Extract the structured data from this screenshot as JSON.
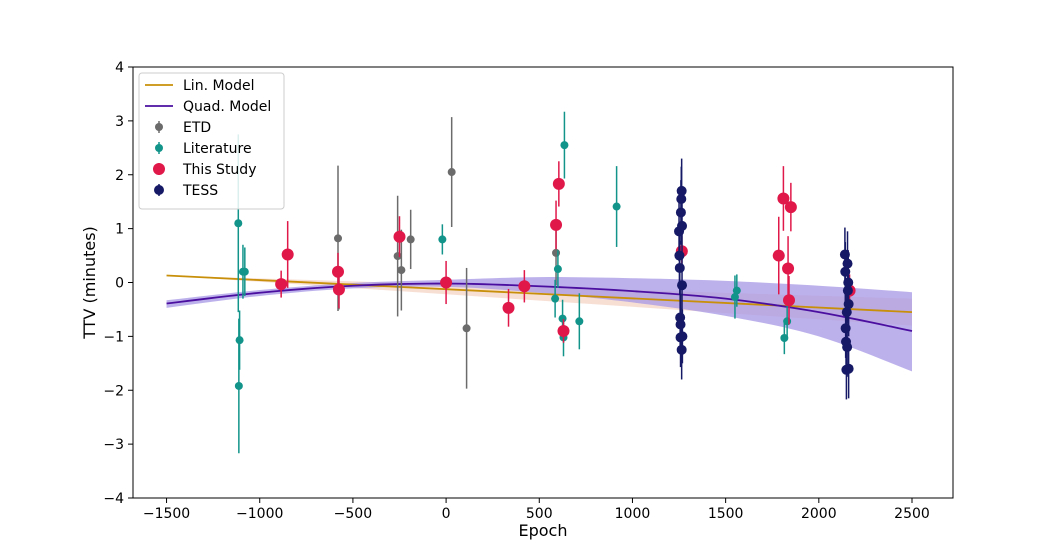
{
  "chart_data": {
    "type": "scatter",
    "xlabel": "Epoch",
    "ylabel": "TTV (minutes)",
    "xlim": [
      -1680,
      2720
    ],
    "ylim": [
      -4,
      4
    ],
    "xticks": [
      -1500,
      -1000,
      -500,
      0,
      500,
      1000,
      1500,
      2000,
      2500
    ],
    "yticks": [
      -4,
      -3,
      -2,
      -1,
      0,
      1,
      2,
      3,
      4
    ],
    "xtick_labels": [
      "−1500",
      "−1000",
      "−500",
      "0",
      "500",
      "1000",
      "1500",
      "2000",
      "2500"
    ],
    "ytick_labels": [
      "−4",
      "−3",
      "−2",
      "−1",
      "0",
      "1",
      "2",
      "3",
      "4"
    ],
    "grid": false,
    "legend_position": "top-left",
    "colors": {
      "lin": "#c8900a",
      "lin_band": "#f3d2c2",
      "quad": "#4b0fa0",
      "quad_band": "#a797e6",
      "etd": "#6b6b6b",
      "literature": "#12948a",
      "this_study": "#e0184a",
      "tess": "#161a66"
    },
    "models": [
      {
        "name": "Lin. Model",
        "x": [
          -1500,
          2500
        ],
        "y": [
          0.13,
          -0.55
        ],
        "band_upper": [
          0.13,
          -0.3
        ],
        "band_lower": [
          0.13,
          -0.8
        ]
      },
      {
        "name": "Quad. Model",
        "x": [
          -1500,
          -1000,
          -500,
          0,
          500,
          1000,
          1500,
          2000,
          2500
        ],
        "y": [
          -0.39,
          -0.19,
          -0.06,
          -0.02,
          -0.07,
          -0.16,
          -0.3,
          -0.55,
          -0.9
        ],
        "band_upper": [
          -0.33,
          -0.14,
          -0.01,
          0.05,
          0.1,
          0.08,
          0.03,
          -0.06,
          -0.18
        ],
        "band_lower": [
          -0.47,
          -0.25,
          -0.11,
          -0.08,
          -0.19,
          -0.37,
          -0.62,
          -1.0,
          -1.65
        ]
      }
    ],
    "series": [
      {
        "name": "ETD",
        "marker_size": 4,
        "points": [
          {
            "x": -580,
            "y": 0.82,
            "err": 1.35
          },
          {
            "x": -575,
            "y": -0.15,
            "err": 0.35
          },
          {
            "x": -260,
            "y": 0.49,
            "err": 1.12
          },
          {
            "x": -240,
            "y": 0.23,
            "err": 0.75
          },
          {
            "x": -190,
            "y": 0.8,
            "err": 0.55
          },
          {
            "x": 30,
            "y": 2.05,
            "err": 1.02
          },
          {
            "x": 110,
            "y": -0.85,
            "err": 1.12
          },
          {
            "x": 590,
            "y": 0.55,
            "err": 0.6
          }
        ]
      },
      {
        "name": "Literature",
        "marker_size": 4,
        "points": [
          {
            "x": -1115,
            "y": 1.1,
            "err": 1.65
          },
          {
            "x": -1108,
            "y": -1.07,
            "err": 0.55
          },
          {
            "x": -1112,
            "y": -1.92,
            "err": 1.25
          },
          {
            "x": -1090,
            "y": 0.2,
            "err": 0.5
          },
          {
            "x": -1080,
            "y": 0.2,
            "err": 0.45
          },
          {
            "x": -20,
            "y": 0.8,
            "err": 0.28
          },
          {
            "x": 585,
            "y": -0.3,
            "err": 0.35
          },
          {
            "x": 600,
            "y": 0.25,
            "err": 0.35
          },
          {
            "x": 625,
            "y": -0.67,
            "err": 0.35
          },
          {
            "x": 630,
            "y": -1.02,
            "err": 0.35
          },
          {
            "x": 635,
            "y": 2.55,
            "err": 0.62
          },
          {
            "x": 715,
            "y": -0.72,
            "err": 0.52
          },
          {
            "x": 915,
            "y": 1.41,
            "err": 0.75
          },
          {
            "x": 1550,
            "y": -0.27,
            "err": 0.4
          },
          {
            "x": 1560,
            "y": -0.15,
            "err": 0.3
          },
          {
            "x": 1815,
            "y": -1.03,
            "err": 0.3
          },
          {
            "x": 1830,
            "y": -0.72,
            "err": 0.3
          }
        ]
      },
      {
        "name": "This Study",
        "marker_size": 6,
        "points": [
          {
            "x": -885,
            "y": -0.03,
            "err": 0.25
          },
          {
            "x": -850,
            "y": 0.52,
            "err": 0.62
          },
          {
            "x": -580,
            "y": 0.2,
            "err": 0.35
          },
          {
            "x": -575,
            "y": -0.13,
            "err": 0.35
          },
          {
            "x": -250,
            "y": 0.85,
            "err": 0.38
          },
          {
            "x": 0,
            "y": 0.0,
            "err": 0.4
          },
          {
            "x": 335,
            "y": -0.47,
            "err": 0.35
          },
          {
            "x": 420,
            "y": -0.07,
            "err": 0.3
          },
          {
            "x": 590,
            "y": 1.07,
            "err": 0.45
          },
          {
            "x": 605,
            "y": 1.83,
            "err": 0.42
          },
          {
            "x": 630,
            "y": -0.9,
            "err": 0.22
          },
          {
            "x": 1265,
            "y": 0.58,
            "err": 0.28
          },
          {
            "x": 1785,
            "y": 0.5,
            "err": 0.72
          },
          {
            "x": 1810,
            "y": 1.56,
            "err": 0.6
          },
          {
            "x": 1835,
            "y": 0.26,
            "err": 0.6
          },
          {
            "x": 1840,
            "y": -0.33,
            "err": 0.45
          },
          {
            "x": 1850,
            "y": 1.4,
            "err": 0.45
          },
          {
            "x": 2165,
            "y": -0.15,
            "err": 0.3
          }
        ]
      },
      {
        "name": "TESS",
        "marker_size": 5,
        "points": [
          {
            "x": 1250,
            "y": 0.95,
            "err": 0.55
          },
          {
            "x": 1252,
            "y": 0.5,
            "err": 0.55
          },
          {
            "x": 1254,
            "y": 0.27,
            "err": 0.5
          },
          {
            "x": 1256,
            "y": -0.65,
            "err": 0.55
          },
          {
            "x": 1258,
            "y": -0.78,
            "err": 0.55
          },
          {
            "x": 1258,
            "y": -1.02,
            "err": 0.55
          },
          {
            "x": 1260,
            "y": 1.3,
            "err": 0.6
          },
          {
            "x": 1262,
            "y": 1.55,
            "err": 0.6
          },
          {
            "x": 1264,
            "y": 1.7,
            "err": 0.6
          },
          {
            "x": 1264,
            "y": -1.25,
            "err": 0.55
          },
          {
            "x": 1266,
            "y": 1.05,
            "err": 0.6
          },
          {
            "x": 1266,
            "y": -0.05,
            "err": 0.6
          },
          {
            "x": 1268,
            "y": -1.0,
            "err": 0.5
          },
          {
            "x": 2140,
            "y": 0.52,
            "err": 0.5
          },
          {
            "x": 2142,
            "y": 0.2,
            "err": 0.55
          },
          {
            "x": 2144,
            "y": -0.85,
            "err": 0.55
          },
          {
            "x": 2146,
            "y": -1.1,
            "err": 0.55
          },
          {
            "x": 2148,
            "y": -1.62,
            "err": 0.55
          },
          {
            "x": 2150,
            "y": -0.55,
            "err": 0.6
          },
          {
            "x": 2152,
            "y": -1.2,
            "err": 0.55
          },
          {
            "x": 2154,
            "y": 0.35,
            "err": 0.6
          },
          {
            "x": 2156,
            "y": -0.15,
            "err": 0.6
          },
          {
            "x": 2158,
            "y": 0.0,
            "err": 0.6
          },
          {
            "x": 2160,
            "y": -0.4,
            "err": 0.6
          },
          {
            "x": 2160,
            "y": -1.6,
            "err": 0.55
          }
        ]
      }
    ]
  }
}
